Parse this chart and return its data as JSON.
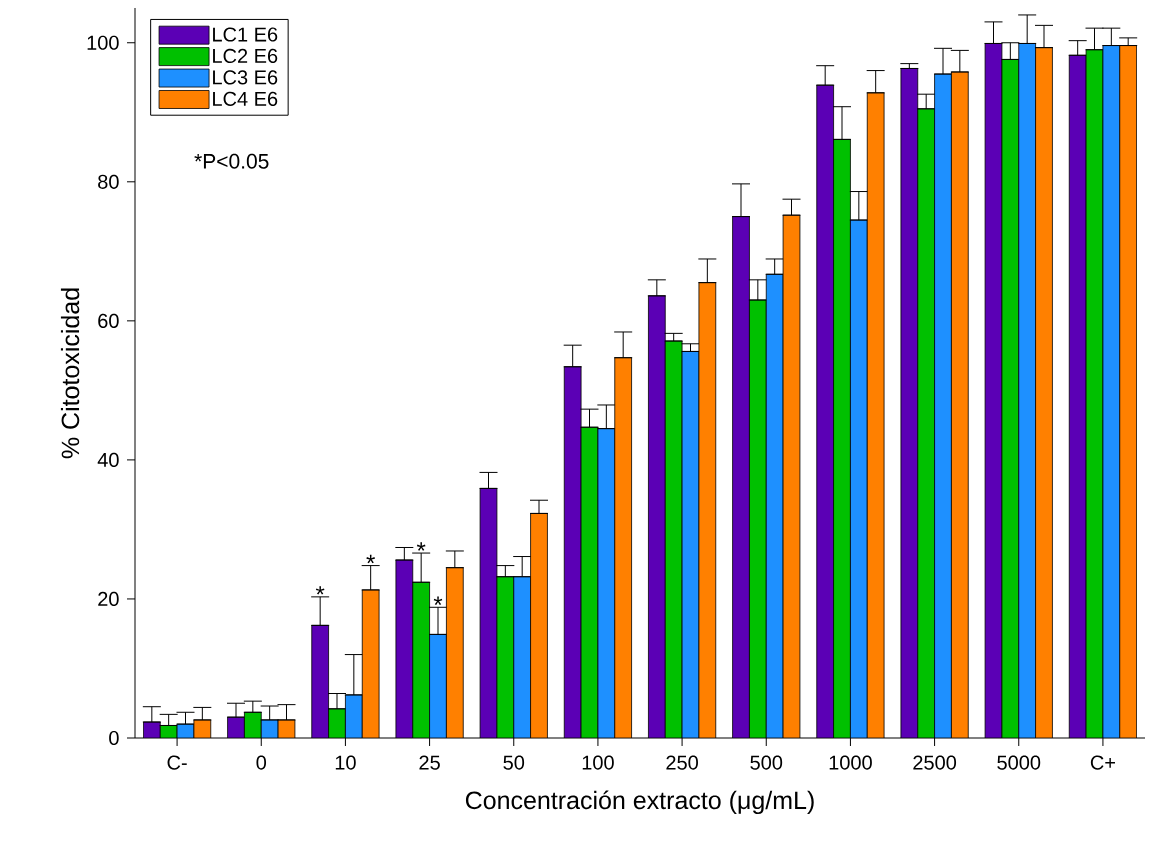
{
  "chart_data": {
    "type": "bar",
    "xlabel": "Concentración extracto (μg/mL)",
    "ylabel": "% Citotoxicidad",
    "categories": [
      "C-",
      "0",
      "10",
      "25",
      "50",
      "100",
      "250",
      "500",
      "1000",
      "2500",
      "5000",
      "C+"
    ],
    "series": [
      {
        "name": "LC1 E6",
        "color": "#5b00b5",
        "values": [
          2.3,
          3.0,
          16.2,
          25.6,
          35.9,
          53.4,
          63.6,
          75.0,
          93.9,
          96.3,
          99.9,
          98.2
        ],
        "errors": [
          [
            2.3,
            4.5
          ],
          [
            3.0,
            5.0
          ],
          [
            16.2,
            20.3
          ],
          [
            25.6,
            27.4
          ],
          [
            35.9,
            38.2
          ],
          [
            53.4,
            56.5
          ],
          [
            63.6,
            65.9
          ],
          [
            75.0,
            79.7
          ],
          [
            93.9,
            96.7
          ],
          [
            96.3,
            97.0
          ],
          [
            99.9,
            103.0
          ],
          [
            98.2,
            100.3
          ]
        ]
      },
      {
        "name": "LC2 E6",
        "color": "#00c000",
        "values": [
          1.8,
          3.7,
          4.2,
          22.4,
          23.2,
          44.7,
          57.1,
          63.0,
          86.1,
          90.5,
          97.6,
          99.0
        ],
        "errors": [
          [
            1.8,
            3.4
          ],
          [
            3.7,
            5.3
          ],
          [
            4.2,
            6.4
          ],
          [
            22.4,
            26.6
          ],
          [
            23.2,
            24.8
          ],
          [
            44.7,
            47.3
          ],
          [
            57.1,
            58.2
          ],
          [
            63.0,
            65.9
          ],
          [
            86.1,
            90.8
          ],
          [
            90.5,
            92.6
          ],
          [
            97.6,
            100.0
          ],
          [
            99.0,
            102.1
          ]
        ]
      },
      {
        "name": "LC3 E6",
        "color": "#1e90ff",
        "values": [
          2.0,
          2.6,
          6.2,
          14.9,
          23.2,
          44.5,
          55.6,
          66.7,
          74.5,
          95.5,
          99.9,
          99.6
        ],
        "errors": [
          [
            2.0,
            3.7
          ],
          [
            2.6,
            4.6
          ],
          [
            6.2,
            12.0
          ],
          [
            14.9,
            18.8
          ],
          [
            23.2,
            26.1
          ],
          [
            44.5,
            47.9
          ],
          [
            55.6,
            56.7
          ],
          [
            66.7,
            68.9
          ],
          [
            74.5,
            78.6
          ],
          [
            95.5,
            99.2
          ],
          [
            99.9,
            104.0
          ],
          [
            99.6,
            102.1
          ]
        ]
      },
      {
        "name": "LC4 E6",
        "color": "#ff8000",
        "values": [
          2.6,
          2.6,
          21.3,
          24.5,
          32.3,
          54.7,
          65.5,
          75.2,
          92.8,
          95.8,
          99.3,
          99.6
        ],
        "errors": [
          [
            2.6,
            4.4
          ],
          [
            2.6,
            4.8
          ],
          [
            21.3,
            24.8
          ],
          [
            24.5,
            26.9
          ],
          [
            32.3,
            34.2
          ],
          [
            54.7,
            58.4
          ],
          [
            65.5,
            68.9
          ],
          [
            75.2,
            77.5
          ],
          [
            92.8,
            96.0
          ],
          [
            95.8,
            98.9
          ],
          [
            99.3,
            102.5
          ],
          [
            99.6,
            100.7
          ]
        ]
      }
    ],
    "ylim": [
      0,
      105
    ],
    "yticks": [
      0,
      20,
      40,
      60,
      80,
      100
    ],
    "grid": false,
    "legend": "top left",
    "annotations": [
      "*P<0.05",
      {
        "text": "*",
        "y": 20.3
      },
      {
        "text": "*",
        "y": 24.8
      },
      {
        "text": "*",
        "y": 26.6
      },
      {
        "text": "*",
        "y": 18.8
      }
    ]
  }
}
